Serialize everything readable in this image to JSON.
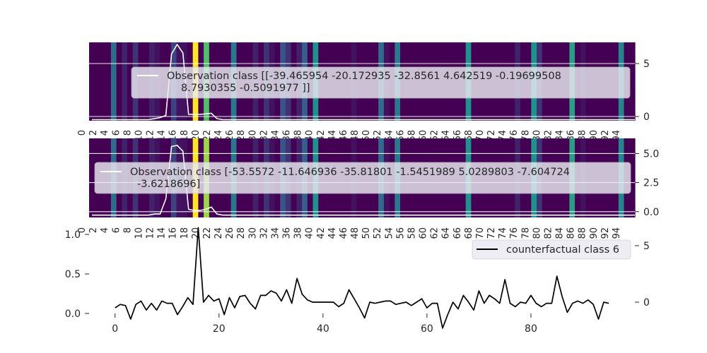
{
  "chart_data": [
    {
      "type": "heatmap",
      "panel": "top",
      "colormap": "viridis",
      "xlim": [
        0,
        96
      ],
      "ylim": [
        -0.4,
        7
      ],
      "yticks": [
        0,
        5
      ],
      "cell_values": [
        0,
        0,
        0,
        0,
        0.35,
        0,
        0.1,
        0,
        0.15,
        0,
        0,
        0.1,
        0.05,
        0,
        0,
        0.2,
        0.05,
        0.05,
        0,
        1.0,
        0,
        0.7,
        0,
        0,
        0,
        0,
        0.4,
        0,
        0,
        0,
        0.1,
        0,
        0.15,
        0.05,
        0,
        0.25,
        0.15,
        0,
        0.1,
        0.3,
        0,
        0.5,
        0,
        0,
        0,
        0,
        0,
        0,
        0.05,
        0,
        0,
        0,
        0,
        0.35,
        0.05,
        0,
        0.4,
        0,
        0,
        0,
        0,
        0,
        0,
        0,
        0,
        0,
        0,
        0,
        0,
        0.5,
        0,
        0,
        0,
        0,
        0,
        0,
        0,
        0,
        0.1,
        0,
        0,
        0.5,
        0.15,
        0,
        0,
        0,
        0,
        0,
        0.55,
        0,
        0.05,
        0,
        0,
        0,
        0,
        0,
        0,
        0.45,
        0,
        0
      ],
      "line": {
        "color": "#ffffff",
        "x": [
          0,
          1,
          2,
          3,
          4,
          5,
          6,
          7,
          8,
          9,
          10,
          11,
          12,
          13,
          14,
          15,
          16,
          17,
          18,
          19,
          20,
          21,
          22,
          23,
          24,
          25,
          26,
          27,
          28,
          29,
          30
        ],
        "y": [
          -0.3,
          -0.3,
          -0.3,
          -0.3,
          -0.3,
          -0.3,
          -0.3,
          -0.3,
          -0.3,
          -0.3,
          -0.3,
          -0.2,
          -0.1,
          0.1,
          5.9,
          6.8,
          6.0,
          0.2,
          0.2,
          0.2,
          0.25,
          0.3,
          -0.2,
          -0.3,
          -0.3,
          -0.3,
          -0.3,
          -0.3,
          -0.3,
          -0.3,
          -0.3
        ]
      },
      "legend": {
        "label": "Observation class [[-39.465954   -20.172935   -32.8561       4.642519    -0.19699508",
        "label_line2": "8.7930355   -0.5091977 ]]",
        "placement": "center-right"
      },
      "x_tick_labels": [
        "0",
        "2",
        "4",
        "6",
        "8",
        "10",
        "12",
        "14",
        "16",
        "18",
        "20",
        "22",
        "24",
        "26",
        "28",
        "30",
        "32",
        "34",
        "36",
        "38",
        "40",
        "42",
        "44",
        "46",
        "48",
        "50",
        "52",
        "54",
        "56",
        "58",
        "60",
        "62",
        "64",
        "66",
        "68",
        "70",
        "72",
        "74",
        "76",
        "78",
        "80",
        "82",
        "84",
        "86",
        "88",
        "90",
        "92",
        "94"
      ]
    },
    {
      "type": "heatmap",
      "panel": "middle",
      "colormap": "viridis",
      "xlim": [
        0,
        96
      ],
      "ylim": [
        -0.5,
        6.3
      ],
      "yticks": [
        0.0,
        2.5,
        5.0
      ],
      "ytick_labels": [
        "0.0",
        "2.5",
        "5.0"
      ],
      "cell_values": [
        0,
        0,
        0,
        0,
        0.35,
        0,
        0.1,
        0,
        0.15,
        0,
        0,
        0.1,
        0.05,
        0,
        0,
        0.2,
        0.05,
        0.05,
        0,
        1.0,
        0,
        0.85,
        0,
        0,
        0,
        0,
        0.4,
        0,
        0,
        0,
        0.1,
        0,
        0.15,
        0.05,
        0,
        0.25,
        0.15,
        0,
        0.1,
        0.3,
        0,
        0.5,
        0,
        0,
        0,
        0,
        0,
        0,
        0.05,
        0,
        0,
        0,
        0,
        0.35,
        0.05,
        0,
        0.4,
        0,
        0,
        0,
        0,
        0,
        0,
        0,
        0,
        0,
        0,
        0,
        0,
        0.5,
        0,
        0,
        0,
        0,
        0,
        0,
        0,
        0,
        0.1,
        0,
        0,
        0.5,
        0.15,
        0,
        0,
        0,
        0,
        0,
        0.55,
        0,
        0.05,
        0,
        0,
        0,
        0,
        0,
        0,
        0.45,
        0,
        0
      ],
      "line": {
        "color": "#ffffff",
        "x": [
          0,
          1,
          2,
          3,
          4,
          5,
          6,
          7,
          8,
          9,
          10,
          11,
          12,
          13,
          14,
          15,
          16,
          17,
          18,
          19,
          20,
          21,
          22,
          23,
          24,
          25,
          26,
          27,
          28,
          29,
          30
        ],
        "y": [
          -0.3,
          -0.3,
          -0.3,
          -0.3,
          -0.3,
          -0.3,
          -0.3,
          -0.3,
          -0.3,
          -0.3,
          -0.3,
          -0.2,
          -0.2,
          1.1,
          5.6,
          5.7,
          5.2,
          0.2,
          0.1,
          0.1,
          0.2,
          0.4,
          -0.2,
          -0.3,
          -0.3,
          -0.3,
          -0.3,
          -0.3,
          -0.3,
          -0.3,
          -0.3
        ]
      },
      "legend": {
        "label": "Observation class [-53.5572     -11.646936  -35.81801    -1.5451989   5.0289803  -7.604724",
        "label_line2": "-3.6218696]",
        "placement": "center"
      },
      "x_tick_labels": [
        "0",
        "2",
        "4",
        "6",
        "8",
        "10",
        "12",
        "14",
        "16",
        "18",
        "20",
        "22",
        "24",
        "26",
        "28",
        "30",
        "32",
        "34",
        "36",
        "38",
        "40",
        "42",
        "44",
        "46",
        "48",
        "50",
        "52",
        "54",
        "56",
        "58",
        "60",
        "62",
        "64",
        "66",
        "68",
        "70",
        "72",
        "74",
        "76",
        "78",
        "80",
        "82",
        "84",
        "86",
        "88",
        "90",
        "92",
        "94"
      ]
    },
    {
      "type": "line",
      "panel": "bottom",
      "xlim": [
        -5,
        100
      ],
      "xticks": [
        0,
        20,
        40,
        60,
        80
      ],
      "left_ylim": [
        0,
        1.0
      ],
      "left_yticks": [
        "0.0",
        "0.5",
        "1.0"
      ],
      "right_ylim": [
        -1.0,
        6.0
      ],
      "right_yticks": [
        0,
        5
      ],
      "series": [
        {
          "name": "counterfactual class 6",
          "color": "#000000",
          "x": [
            0,
            1,
            2,
            3,
            4,
            5,
            6,
            7,
            8,
            9,
            10,
            11,
            12,
            13,
            14,
            15,
            16,
            17,
            18,
            19,
            20,
            21,
            22,
            23,
            24,
            25,
            26,
            27,
            28,
            29,
            30,
            31,
            32,
            33,
            34,
            35,
            36,
            37,
            38,
            39,
            40,
            41,
            42,
            43,
            44,
            45,
            46,
            47,
            48,
            49,
            50,
            51,
            52,
            53,
            54,
            55,
            56,
            57,
            58,
            59,
            60,
            61,
            62,
            63,
            64,
            65,
            66,
            67,
            68,
            69,
            70,
            71,
            72,
            73,
            74,
            75,
            76,
            77,
            78,
            79,
            80,
            81,
            82,
            83,
            84,
            85,
            86,
            87,
            88,
            89,
            90,
            91,
            92,
            93,
            94,
            95
          ],
          "y": [
            -0.5,
            -0.2,
            -0.3,
            -1.5,
            -0.2,
            0.1,
            -0.7,
            -0.1,
            -0.7,
            0.1,
            -0.1,
            -0.1,
            -1.1,
            -0.4,
            0.4,
            -0.2,
            6.6,
            0,
            0.6,
            0.1,
            0.3,
            -1.1,
            0.4,
            -0.5,
            0.5,
            0.6,
            -0.1,
            -0.6,
            0.6,
            0.6,
            1.0,
            0.8,
            0.1,
            1.1,
            -0.1,
            2.1,
            0.7,
            0.2,
            0,
            0,
            0,
            0,
            0,
            -0.4,
            -0.1,
            1.1,
            0.3,
            -0.5,
            -1.4,
            0,
            -0.1,
            0,
            0.1,
            0.1,
            -0.2,
            -0.1,
            0,
            -0.3,
            0,
            0.3,
            -0.5,
            -0.1,
            -0.1,
            -2.3,
            -1.1,
            0,
            -0.6,
            0.6,
            0,
            -0.7,
            1.0,
            -0.1,
            0.6,
            0.3,
            -0.1,
            2.0,
            -0.1,
            -0.4,
            0,
            -0.1,
            0.6,
            -0.1,
            -0.4,
            -0.1,
            -0.1,
            2.3,
            0.5,
            -0.9,
            -0.1,
            0.1,
            -0.1,
            0.2,
            -0.2,
            -1.5,
            0,
            -0.1
          ]
        }
      ],
      "legend": {
        "label": "counterfactual class 6",
        "placement": "top-right"
      }
    }
  ]
}
